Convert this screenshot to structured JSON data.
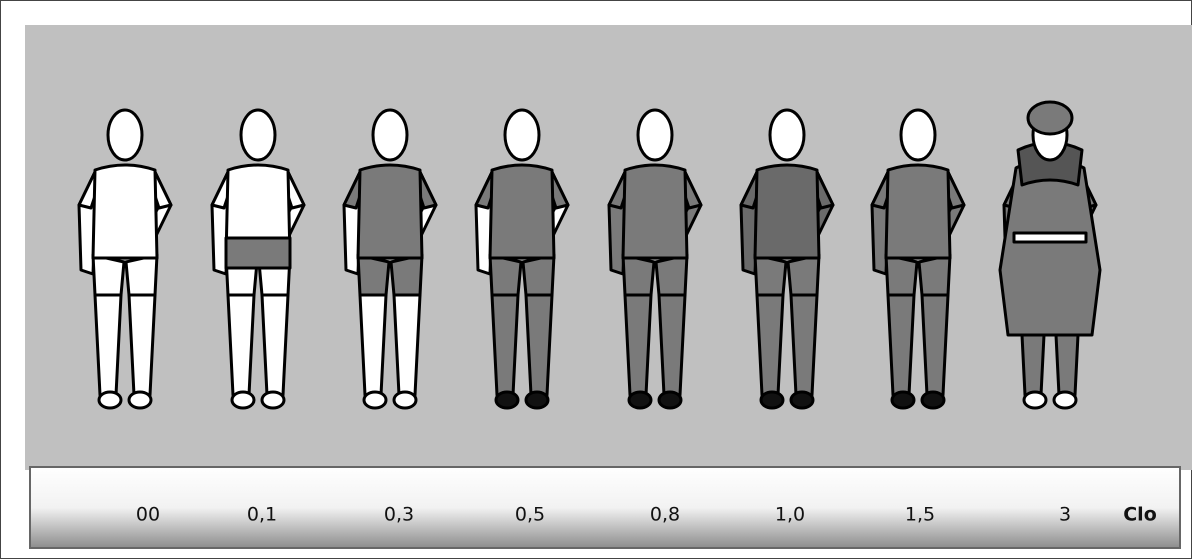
{
  "scale": {
    "labels": [
      "00",
      "0,1",
      "0,3",
      "0,5",
      "0,8",
      "1,0",
      "1,5",
      "3"
    ],
    "unit": "Clo"
  }
}
